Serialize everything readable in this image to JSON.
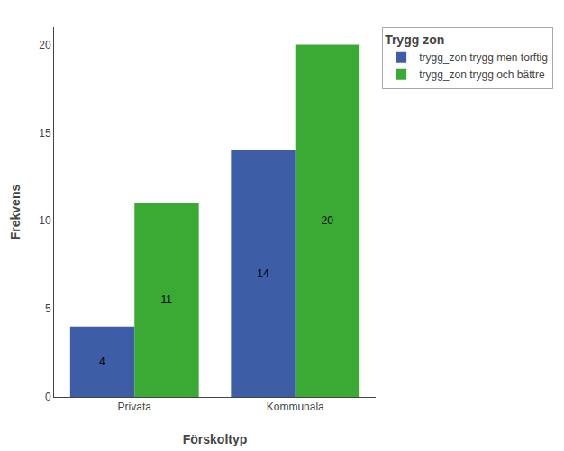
{
  "chart_data": {
    "type": "bar",
    "categories": [
      "Privata",
      "Kommunala"
    ],
    "series": [
      {
        "name": "trygg_zon trygg men torftig",
        "color": "#3d5ea6",
        "values": [
          4,
          14
        ]
      },
      {
        "name": "trygg_zon trygg och bättre",
        "color": "#3aaa35",
        "values": [
          11,
          20
        ]
      }
    ],
    "legend_title": "Trygg zon",
    "xlabel": "Förskoltyp",
    "ylabel": "Frekvens",
    "ylim": [
      0,
      21
    ],
    "yticks": [
      0,
      5,
      10,
      15,
      20
    ],
    "grid": false,
    "legend": "right",
    "data_labels": true
  }
}
